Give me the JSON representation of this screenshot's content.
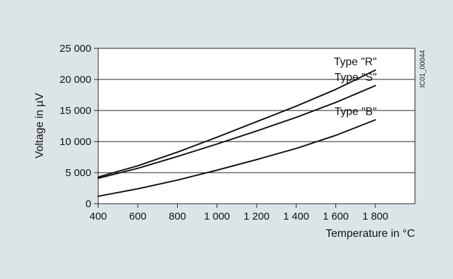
{
  "figure_id": "IC01_00044",
  "chart_data": {
    "type": "line",
    "xlabel": "Temperature in °C",
    "ylabel": "Voltage in µV",
    "xlim": [
      400,
      2000
    ],
    "ylim": [
      0,
      25000
    ],
    "x_ticks": [
      400,
      600,
      800,
      1000,
      1200,
      1400,
      1600,
      1800
    ],
    "x_tick_labels": [
      "400",
      "600",
      "800",
      "1 000",
      "1 200",
      "1 400",
      "1 600",
      "1 800"
    ],
    "y_ticks": [
      0,
      5000,
      10000,
      15000,
      20000,
      25000
    ],
    "y_tick_labels": [
      "0",
      "5 000",
      "10 000",
      "15 000",
      "20 000",
      "25 000"
    ],
    "grid": "horizontal",
    "series": [
      {
        "name": "Type \"R\"",
        "x": [
          400,
          600,
          800,
          1000,
          1200,
          1400,
          1600,
          1800
        ],
        "y": [
          4300,
          6100,
          8300,
          10700,
          13200,
          15700,
          18400,
          21500
        ]
      },
      {
        "name": "Type \"S\"",
        "x": [
          400,
          600,
          800,
          1000,
          1200,
          1400,
          1600,
          1800
        ],
        "y": [
          4100,
          5700,
          7600,
          9600,
          11700,
          13900,
          16300,
          19000
        ]
      },
      {
        "name": "Type \"B\"",
        "x": [
          400,
          600,
          800,
          1000,
          1200,
          1400,
          1600,
          1800
        ],
        "y": [
          1200,
          2400,
          3800,
          5400,
          7100,
          8900,
          11000,
          13500
        ]
      }
    ]
  }
}
